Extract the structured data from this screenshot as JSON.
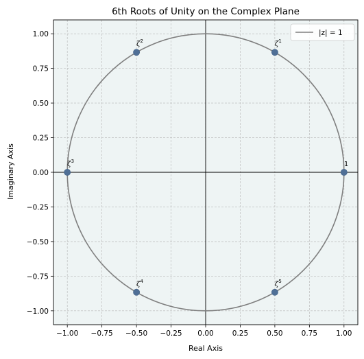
{
  "chart_data": {
    "type": "scatter",
    "title": "6th Roots of Unity on the Complex Plane",
    "xlabel": "Real Axis",
    "ylabel": "Imaginary Axis",
    "xlim": [
      -1.1,
      1.1
    ],
    "ylim": [
      -1.1,
      1.1
    ],
    "xticks": [
      -1.0,
      -0.75,
      -0.5,
      -0.25,
      0.0,
      0.25,
      0.5,
      0.75,
      1.0
    ],
    "yticks": [
      -1.0,
      -0.75,
      -0.5,
      -0.25,
      0.0,
      0.25,
      0.5,
      0.75,
      1.0
    ],
    "xtick_labels": [
      "−1.00",
      "−0.75",
      "−0.50",
      "−0.25",
      "0.00",
      "0.25",
      "0.50",
      "0.75",
      "1.00"
    ],
    "ytick_labels": [
      "−1.00",
      "−0.75",
      "−0.50",
      "−0.25",
      "0.00",
      "0.25",
      "0.50",
      "0.75",
      "1.00"
    ],
    "grid": true,
    "legend_position": "top-right",
    "background_color": "#eef4f4",
    "point_color": "#4f6f96",
    "circle_color": "#7f7f7f",
    "circle": {
      "label": "|z| = 1",
      "radius": 1
    },
    "points": [
      {
        "x": 1.0,
        "y": 0.0,
        "base": "1",
        "sup": ""
      },
      {
        "x": 0.5,
        "y": 0.866,
        "base": "ζ",
        "sup": "1"
      },
      {
        "x": -0.5,
        "y": 0.866,
        "base": "ζ",
        "sup": "2"
      },
      {
        "x": -1.0,
        "y": 0.0,
        "base": "ζ",
        "sup": "3"
      },
      {
        "x": -0.5,
        "y": -0.866,
        "base": "ζ",
        "sup": "4"
      },
      {
        "x": 0.5,
        "y": -0.866,
        "base": "ζ",
        "sup": "5"
      }
    ]
  }
}
